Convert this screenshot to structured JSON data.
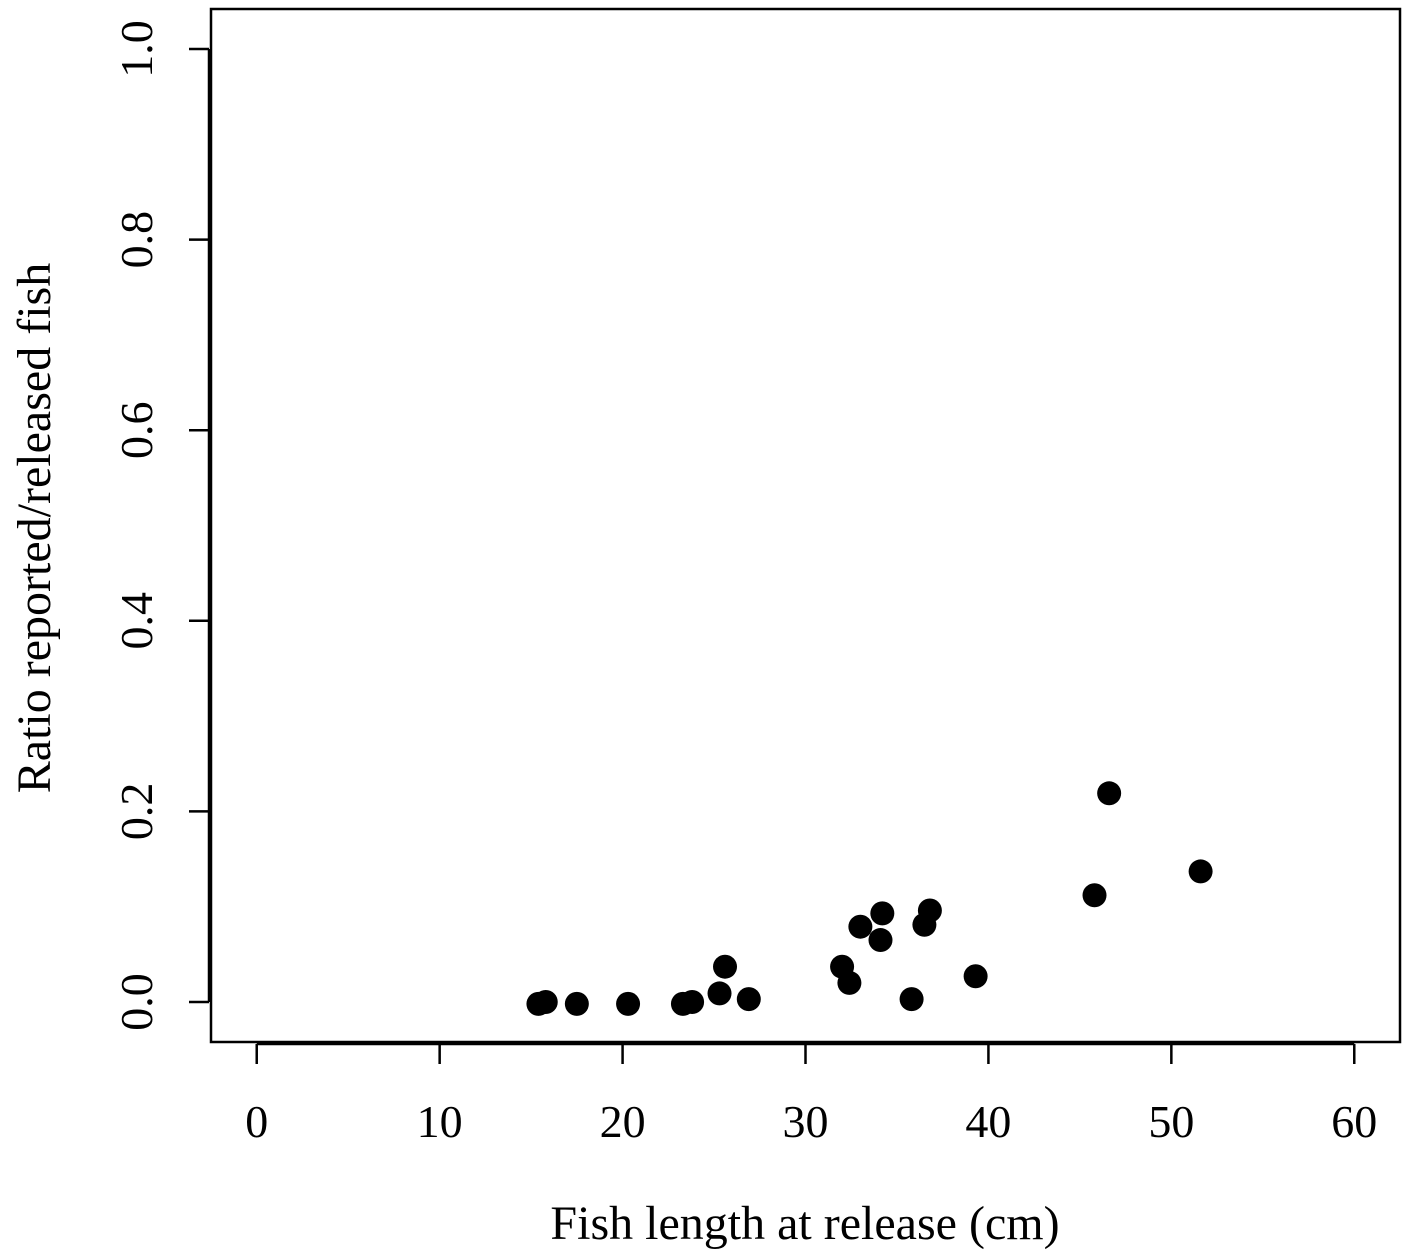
{
  "chart_data": {
    "type": "scatter",
    "title": "",
    "xlabel": "Fish length at release (cm)",
    "ylabel": "Ratio reported/released fish",
    "xlim": [
      -2.5,
      62.5
    ],
    "ylim": [
      -0.042,
      1.042
    ],
    "x_ticks": [
      0,
      10,
      20,
      30,
      40,
      50,
      60
    ],
    "x_tick_labels": [
      "0",
      "10",
      "20",
      "30",
      "40",
      "50",
      "60"
    ],
    "y_ticks": [
      0.0,
      0.2,
      0.4,
      0.6,
      0.8,
      1.0
    ],
    "y_tick_labels": [
      "0.0",
      "0.2",
      "0.4",
      "0.6",
      "0.8",
      "1.0"
    ],
    "grid": false,
    "legend": "none",
    "marker_color": "#000000",
    "points": [
      {
        "x": 15.4,
        "y": -0.002
      },
      {
        "x": 15.8,
        "y": 0.0
      },
      {
        "x": 17.5,
        "y": -0.002
      },
      {
        "x": 20.3,
        "y": -0.002
      },
      {
        "x": 23.3,
        "y": -0.002
      },
      {
        "x": 23.8,
        "y": 0.0
      },
      {
        "x": 25.3,
        "y": 0.009
      },
      {
        "x": 25.6,
        "y": 0.037
      },
      {
        "x": 26.9,
        "y": 0.003
      },
      {
        "x": 32.0,
        "y": 0.037
      },
      {
        "x": 32.4,
        "y": 0.02
      },
      {
        "x": 33.0,
        "y": 0.079
      },
      {
        "x": 34.1,
        "y": 0.065
      },
      {
        "x": 34.2,
        "y": 0.093
      },
      {
        "x": 35.8,
        "y": 0.003
      },
      {
        "x": 36.5,
        "y": 0.081
      },
      {
        "x": 36.8,
        "y": 0.096
      },
      {
        "x": 39.3,
        "y": 0.027
      },
      {
        "x": 45.8,
        "y": 0.112
      },
      {
        "x": 46.6,
        "y": 0.219
      },
      {
        "x": 51.6,
        "y": 0.137
      }
    ]
  }
}
